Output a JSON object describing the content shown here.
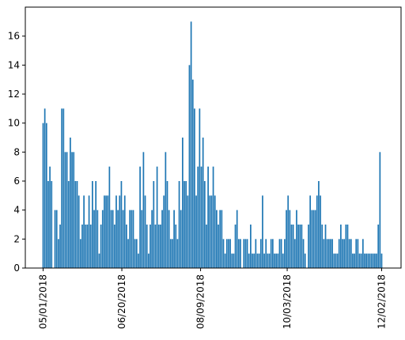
{
  "chart_data": {
    "type": "bar",
    "title": "",
    "xlabel": "",
    "ylabel": "",
    "start_date": "2018-05-01",
    "end_date": "2018-12-02",
    "ylim": [
      0,
      18
    ],
    "yticks": [
      0,
      2,
      4,
      6,
      8,
      10,
      12,
      14,
      16
    ],
    "xticks": [
      {
        "date": "2018-05-01",
        "label": "05/01/2018"
      },
      {
        "date": "2018-06-20",
        "label": "06/20/2018"
      },
      {
        "date": "2018-08-09",
        "label": "08/09/2018"
      },
      {
        "date": "2018-10-03",
        "label": "10/03/2018"
      },
      {
        "date": "2018-12-02",
        "label": "12/02/2018"
      }
    ],
    "grid": false,
    "bar_color": "#1f77b4",
    "values": [
      10,
      11,
      10,
      6,
      7,
      6,
      0,
      4,
      4,
      2,
      3,
      11,
      11,
      8,
      8,
      6,
      9,
      8,
      8,
      6,
      6,
      5,
      2,
      3,
      5,
      3,
      3,
      5,
      3,
      6,
      4,
      6,
      4,
      1,
      3,
      4,
      5,
      5,
      5,
      7,
      4,
      4,
      3,
      5,
      4,
      5,
      6,
      4,
      5,
      3,
      2,
      4,
      4,
      4,
      2,
      2,
      1,
      7,
      4,
      8,
      5,
      3,
      1,
      3,
      4,
      6,
      3,
      7,
      3,
      3,
      4,
      5,
      8,
      6,
      4,
      2,
      2,
      4,
      3,
      2,
      6,
      4,
      9,
      6,
      6,
      5,
      14,
      17,
      13,
      11,
      5,
      7,
      11,
      7,
      9,
      6,
      3,
      7,
      5,
      5,
      7,
      5,
      4,
      3,
      4,
      4,
      2,
      1,
      2,
      2,
      2,
      1,
      1,
      3,
      4,
      2,
      2,
      0,
      2,
      2,
      2,
      1,
      3,
      1,
      1,
      2,
      1,
      1,
      2,
      5,
      1,
      2,
      1,
      1,
      2,
      2,
      1,
      1,
      1,
      2,
      2,
      1,
      2,
      4,
      5,
      4,
      3,
      3,
      2,
      4,
      3,
      3,
      3,
      2,
      1,
      0,
      3,
      5,
      4,
      4,
      4,
      5,
      6,
      5,
      3,
      2,
      3,
      2,
      2,
      2,
      2,
      1,
      1,
      1,
      2,
      3,
      2,
      2,
      3,
      3,
      2,
      2,
      1,
      1,
      2,
      2,
      1,
      1,
      2,
      1,
      1,
      1,
      1,
      1,
      1,
      1,
      1,
      3,
      8,
      1
    ]
  }
}
